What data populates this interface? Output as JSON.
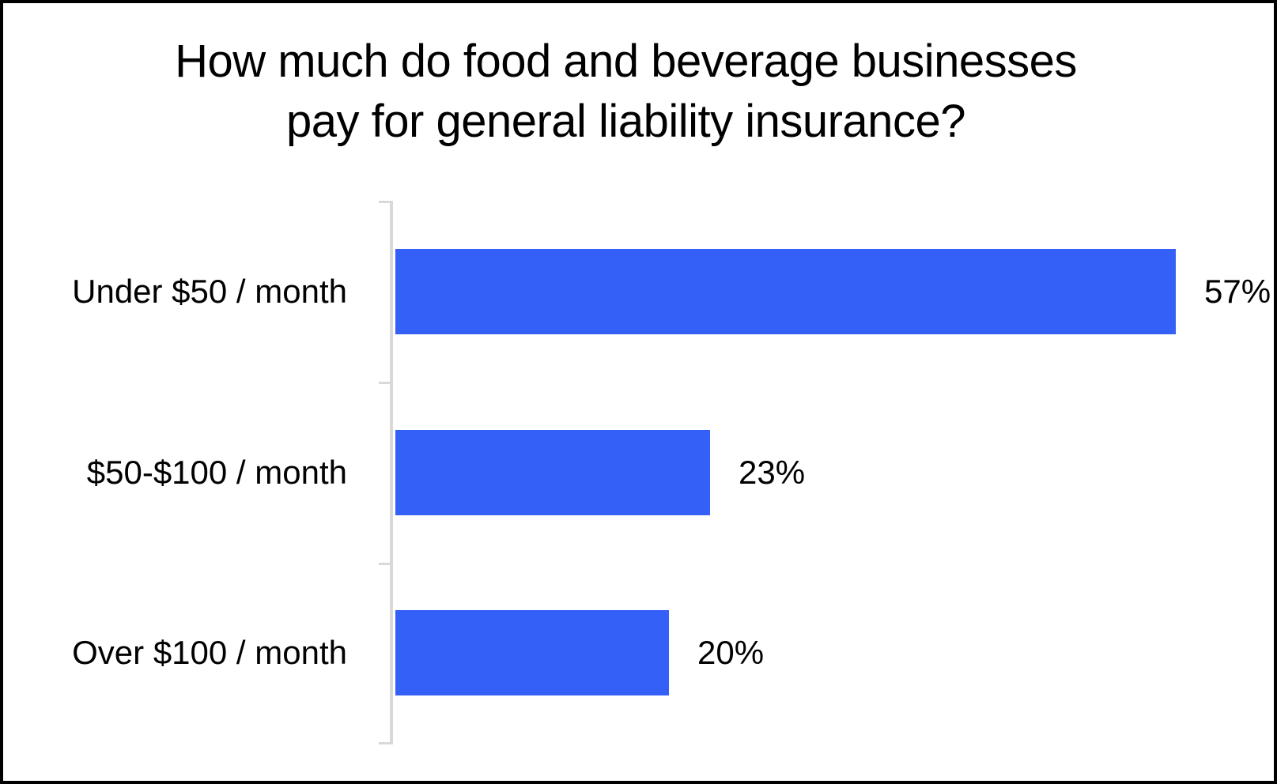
{
  "chart_data": {
    "type": "bar",
    "orientation": "horizontal",
    "title": "How much do food and beverage businesses pay for general liability insurance?",
    "title_lines": [
      "How much do food and beverage businesses",
      "pay for general liability insurance?"
    ],
    "categories": [
      "Under $50 / month",
      "$50-$100 / month",
      "Over $100 / month"
    ],
    "values": [
      57,
      23,
      20
    ],
    "value_labels": [
      "57%",
      "23%",
      "20%"
    ],
    "xlabel": "",
    "ylabel": "",
    "xlim": [
      0,
      57
    ],
    "grid": false,
    "legend_position": "none",
    "bar_color": "#3560f8",
    "axis_color": "#d9d9d9",
    "text_color": "#000000",
    "background_color": "#ffffff",
    "border_color": "#000000"
  }
}
